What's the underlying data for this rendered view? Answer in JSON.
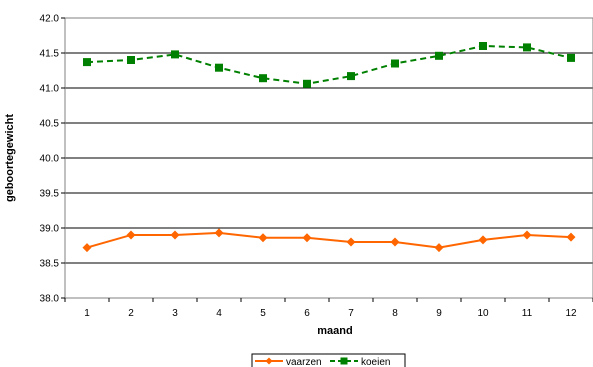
{
  "chart_data": {
    "type": "line",
    "title": "",
    "xlabel": "maand",
    "ylabel": "geboortegewicht",
    "x": [
      1,
      2,
      3,
      4,
      5,
      6,
      7,
      8,
      9,
      10,
      11,
      12
    ],
    "x_tick_labels": [
      "1",
      "2",
      "3",
      "4",
      "5",
      "6",
      "7",
      "8",
      "9",
      "10",
      "11",
      "12"
    ],
    "ylim": [
      38.0,
      42.0
    ],
    "y_ticks": [
      38.0,
      38.5,
      39.0,
      39.5,
      40.0,
      40.5,
      41.0,
      41.5,
      42.0
    ],
    "y_tick_labels": [
      "38.0",
      "38.5",
      "39.0",
      "39.5",
      "40.0",
      "40.5",
      "41.0",
      "41.5",
      "42.0"
    ],
    "grid": "horizontal",
    "legend_position": "bottom",
    "series": [
      {
        "name": "vaarzen",
        "color": "#FF6600",
        "line_style": "solid",
        "marker": "diamond",
        "values": [
          38.72,
          38.9,
          38.9,
          38.93,
          38.86,
          38.86,
          38.8,
          38.8,
          38.72,
          38.83,
          38.9,
          38.87
        ]
      },
      {
        "name": "koeien",
        "color": "#008000",
        "line_style": "dashed",
        "marker": "square",
        "values": [
          41.37,
          41.4,
          41.48,
          41.29,
          41.14,
          41.06,
          41.17,
          41.35,
          41.46,
          41.6,
          41.58,
          41.43
        ]
      }
    ]
  }
}
